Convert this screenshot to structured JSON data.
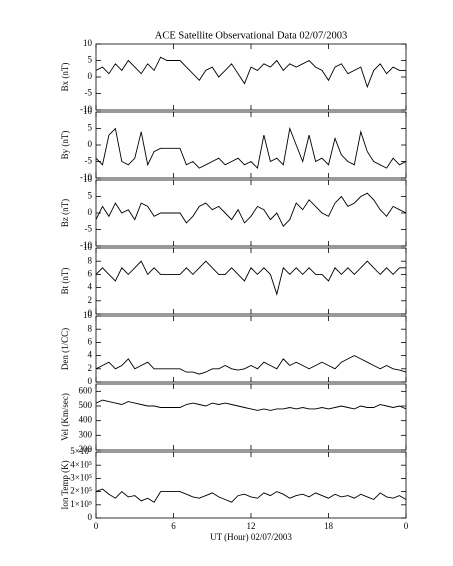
{
  "chart_data": [
    {
      "type": "line",
      "title": "ACE Satellite Observational Data   02/07/2003",
      "ylabel": "Bx (nT)",
      "color": "#000000",
      "x": [
        0,
        0.5,
        1,
        1.5,
        2,
        2.5,
        3,
        3.5,
        4,
        4.5,
        5,
        5.5,
        6,
        6.5,
        7,
        7.5,
        8,
        8.5,
        9,
        9.5,
        10,
        10.5,
        11,
        11.5,
        12,
        12.5,
        13,
        13.5,
        14,
        14.5,
        15,
        15.5,
        16,
        16.5,
        17,
        17.5,
        18,
        18.5,
        19,
        19.5,
        20,
        20.5,
        21,
        21.5,
        22,
        22.5,
        23,
        23.5,
        24
      ],
      "values": [
        2,
        3,
        1,
        4,
        2,
        5,
        3,
        1,
        4,
        2,
        6,
        5,
        5,
        5,
        3,
        1,
        -1,
        2,
        3,
        0,
        2,
        4,
        1,
        -2,
        3,
        2,
        4,
        3,
        5,
        2,
        4,
        3,
        4,
        5,
        3,
        2,
        -1,
        3,
        4,
        1,
        2,
        3,
        -3,
        2,
        4,
        1,
        3,
        2,
        2
      ],
      "xlim": [
        0,
        24
      ],
      "xticks": [
        0,
        6,
        12,
        18,
        {
          "value": 24,
          "label": "0"
        }
      ],
      "ylim": [
        -10,
        10
      ],
      "yticks": [
        -10,
        -5,
        0,
        5,
        10
      ]
    },
    {
      "type": "line",
      "ylabel": "By (nT)",
      "color": "#000000",
      "x": [
        0,
        0.5,
        1,
        1.5,
        2,
        2.5,
        3,
        3.5,
        4,
        4.5,
        5,
        5.5,
        6,
        6.5,
        7,
        7.5,
        8,
        8.5,
        9,
        9.5,
        10,
        10.5,
        11,
        11.5,
        12,
        12.5,
        13,
        13.5,
        14,
        14.5,
        15,
        15.5,
        16,
        16.5,
        17,
        17.5,
        18,
        18.5,
        19,
        19.5,
        20,
        20.5,
        21,
        21.5,
        22,
        22.5,
        23,
        23.5,
        24
      ],
      "values": [
        -4,
        -6,
        3,
        5,
        -5,
        -6,
        -4,
        4,
        -6,
        -2,
        -1,
        -1,
        -1,
        -1,
        -6,
        -5,
        -7,
        -6,
        -5,
        -4,
        -6,
        -5,
        -4,
        -6,
        -5,
        -7,
        3,
        -5,
        -4,
        -6,
        5,
        0,
        -5,
        3,
        -5,
        -4,
        -6,
        2,
        -3,
        -5,
        -6,
        4,
        -2,
        -5,
        -6,
        -7,
        -4,
        -6,
        -5
      ],
      "xlim": [
        0,
        24
      ],
      "xticks": [
        0,
        6,
        12,
        18,
        {
          "value": 24,
          "label": "0"
        }
      ],
      "ylim": [
        -10,
        10
      ],
      "yticks": [
        -10,
        -5,
        0,
        5,
        10
      ]
    },
    {
      "type": "line",
      "ylabel": "Bz (nT)",
      "color": "#000000",
      "x": [
        0,
        0.5,
        1,
        1.5,
        2,
        2.5,
        3,
        3.5,
        4,
        4.5,
        5,
        5.5,
        6,
        6.5,
        7,
        7.5,
        8,
        8.5,
        9,
        9.5,
        10,
        10.5,
        11,
        11.5,
        12,
        12.5,
        13,
        13.5,
        14,
        14.5,
        15,
        15.5,
        16,
        16.5,
        17,
        17.5,
        18,
        18.5,
        19,
        19.5,
        20,
        20.5,
        21,
        21.5,
        22,
        22.5,
        23,
        23.5,
        24
      ],
      "values": [
        -2,
        2,
        -1,
        3,
        0,
        1,
        -2,
        3,
        2,
        -1,
        0,
        0,
        0,
        0,
        -3,
        -1,
        2,
        3,
        1,
        2,
        0,
        -2,
        1,
        -3,
        -1,
        2,
        1,
        -2,
        0,
        -4,
        -2,
        3,
        1,
        4,
        2,
        0,
        -1,
        3,
        5,
        2,
        3,
        5,
        6,
        4,
        1,
        -1,
        2,
        1,
        0
      ],
      "xlim": [
        0,
        24
      ],
      "xticks": [
        0,
        6,
        12,
        18,
        {
          "value": 24,
          "label": "0"
        }
      ],
      "ylim": [
        -10,
        10
      ],
      "yticks": [
        -10,
        -5,
        0,
        5,
        10
      ]
    },
    {
      "type": "line",
      "ylabel": "Bt (nT)",
      "color": "#000000",
      "x": [
        0,
        0.5,
        1,
        1.5,
        2,
        2.5,
        3,
        3.5,
        4,
        4.5,
        5,
        5.5,
        6,
        6.5,
        7,
        7.5,
        8,
        8.5,
        9,
        9.5,
        10,
        10.5,
        11,
        11.5,
        12,
        12.5,
        13,
        13.5,
        14,
        14.5,
        15,
        15.5,
        16,
        16.5,
        17,
        17.5,
        18,
        18.5,
        19,
        19.5,
        20,
        20.5,
        21,
        21.5,
        22,
        22.5,
        23,
        23.5,
        24
      ],
      "values": [
        6,
        7,
        6,
        5,
        7,
        6,
        7,
        8,
        6,
        7,
        6,
        6,
        6,
        6,
        7,
        6,
        7,
        8,
        7,
        6,
        6,
        7,
        6,
        5,
        7,
        6,
        7,
        6,
        3,
        7,
        6,
        7,
        6,
        7,
        6,
        6,
        5,
        7,
        6,
        7,
        6,
        7,
        8,
        7,
        6,
        7,
        6,
        7,
        7
      ],
      "xlim": [
        0,
        24
      ],
      "xticks": [
        0,
        6,
        12,
        18,
        {
          "value": 24,
          "label": "0"
        }
      ],
      "ylim": [
        0,
        10
      ],
      "yticks": [
        0,
        2,
        4,
        6,
        8,
        10
      ]
    },
    {
      "type": "line",
      "ylabel": "Den (1/CC)",
      "color": "#000000",
      "x": [
        0,
        0.5,
        1,
        1.5,
        2,
        2.5,
        3,
        3.5,
        4,
        4.5,
        5,
        5.5,
        6,
        6.5,
        7,
        7.5,
        8,
        8.5,
        9,
        9.5,
        10,
        10.5,
        11,
        11.5,
        12,
        12.5,
        13,
        13.5,
        14,
        14.5,
        15,
        15.5,
        16,
        16.5,
        17,
        17.5,
        18,
        18.5,
        19,
        19.5,
        20,
        20.5,
        21,
        21.5,
        22,
        22.5,
        23,
        23.5,
        24
      ],
      "values": [
        2,
        2.5,
        3,
        2,
        2.5,
        3.5,
        2,
        2.5,
        3,
        2,
        2,
        2,
        2,
        2,
        1.5,
        1.5,
        1.2,
        1.5,
        2,
        2,
        2.5,
        2,
        1.8,
        2,
        2.5,
        2,
        3,
        2.5,
        2,
        3.5,
        2.5,
        3,
        2.5,
        2,
        2.5,
        3,
        2.5,
        2,
        3,
        3.5,
        4,
        3.5,
        3,
        2.5,
        2,
        2.5,
        2,
        1.8,
        1.5
      ],
      "xlim": [
        0,
        24
      ],
      "xticks": [
        0,
        6,
        12,
        18,
        {
          "value": 24,
          "label": "0"
        }
      ],
      "ylim": [
        0,
        10
      ],
      "yticks": [
        0,
        2,
        4,
        6,
        8,
        10
      ]
    },
    {
      "type": "line",
      "ylabel": "Vel (Km/sec)",
      "color": "#000000",
      "x": [
        0,
        0.5,
        1,
        1.5,
        2,
        2.5,
        3,
        3.5,
        4,
        4.5,
        5,
        5.5,
        6,
        6.5,
        7,
        7.5,
        8,
        8.5,
        9,
        9.5,
        10,
        10.5,
        11,
        11.5,
        12,
        12.5,
        13,
        13.5,
        14,
        14.5,
        15,
        15.5,
        16,
        16.5,
        17,
        17.5,
        18,
        18.5,
        19,
        19.5,
        20,
        20.5,
        21,
        21.5,
        22,
        22.5,
        23,
        23.5,
        24
      ],
      "values": [
        520,
        540,
        530,
        520,
        510,
        530,
        520,
        510,
        500,
        500,
        490,
        490,
        490,
        490,
        510,
        520,
        510,
        500,
        520,
        510,
        520,
        510,
        500,
        490,
        480,
        470,
        480,
        470,
        480,
        480,
        490,
        480,
        490,
        480,
        480,
        490,
        480,
        490,
        500,
        490,
        480,
        500,
        490,
        490,
        510,
        500,
        490,
        500,
        480
      ],
      "xlim": [
        0,
        24
      ],
      "xticks": [
        0,
        6,
        12,
        18,
        {
          "value": 24,
          "label": "0"
        }
      ],
      "ylim": [
        200,
        650
      ],
      "yticks": [
        200,
        300,
        400,
        500,
        600
      ]
    },
    {
      "type": "line",
      "ylabel": "Ion Temp (K)",
      "xlabel": "UT (Hour)   02/07/2003",
      "color": "#000000",
      "x": [
        0,
        0.5,
        1,
        1.5,
        2,
        2.5,
        3,
        3.5,
        4,
        4.5,
        5,
        5.5,
        6,
        6.5,
        7,
        7.5,
        8,
        8.5,
        9,
        9.5,
        10,
        10.5,
        11,
        11.5,
        12,
        12.5,
        13,
        13.5,
        14,
        14.5,
        15,
        15.5,
        16,
        16.5,
        17,
        17.5,
        18,
        18.5,
        19,
        19.5,
        20,
        20.5,
        21,
        21.5,
        22,
        22.5,
        23,
        23.5,
        24
      ],
      "values": [
        200000,
        220000,
        180000,
        150000,
        200000,
        160000,
        170000,
        130000,
        150000,
        120000,
        200000,
        200000,
        200000,
        200000,
        180000,
        160000,
        150000,
        170000,
        190000,
        160000,
        140000,
        120000,
        170000,
        180000,
        160000,
        150000,
        190000,
        170000,
        200000,
        180000,
        150000,
        170000,
        180000,
        160000,
        190000,
        170000,
        150000,
        180000,
        160000,
        170000,
        150000,
        180000,
        160000,
        140000,
        190000,
        160000,
        150000,
        170000,
        140000
      ],
      "xlim": [
        0,
        24
      ],
      "xticks": [
        0,
        6,
        12,
        18,
        {
          "value": 24,
          "label": "0"
        }
      ],
      "ylim": [
        0,
        500000
      ],
      "yticks": [
        0,
        {
          "value": 100000,
          "label": "1×10⁵"
        },
        {
          "value": 200000,
          "label": "2×10⁵"
        },
        {
          "value": 300000,
          "label": "3×10⁵"
        },
        {
          "value": 400000,
          "label": "4×10⁵"
        },
        {
          "value": 500000,
          "label": "5×10⁵"
        }
      ]
    }
  ]
}
